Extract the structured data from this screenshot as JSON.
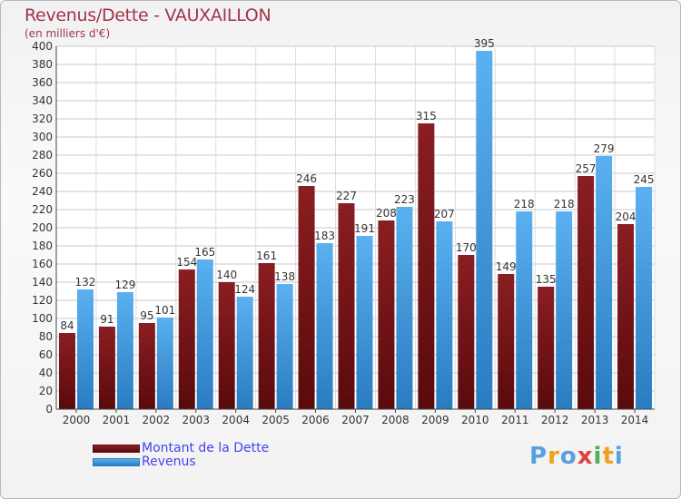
{
  "chart_data": {
    "type": "bar",
    "title": "Revenus/Dette - VAUXAILLON",
    "subtitle": "(en milliers d'€)",
    "categories": [
      "2000",
      "2001",
      "2002",
      "2003",
      "2004",
      "2005",
      "2006",
      "2007",
      "2008",
      "2009",
      "2010",
      "2011",
      "2012",
      "2013",
      "2014"
    ],
    "series": [
      {
        "name": "Montant de la Dette",
        "color": "#7a1418",
        "values": [
          84,
          91,
          95,
          154,
          140,
          161,
          246,
          227,
          208,
          315,
          170,
          149,
          135,
          257,
          204
        ]
      },
      {
        "name": "Revenus",
        "color": "#4aa3e6",
        "values": [
          132,
          129,
          101,
          165,
          124,
          138,
          183,
          191,
          223,
          207,
          395,
          218,
          218,
          279,
          245
        ]
      }
    ],
    "ylim": [
      0,
      400
    ],
    "ytick_step": 20,
    "grid": true,
    "legend_position": "bottom-left"
  },
  "legend": {
    "debt_label": "Montant de la Dette",
    "revenue_label": "Revenus"
  },
  "logo": {
    "letters": [
      "P",
      "r",
      "o",
      "x",
      "i",
      "t",
      "i"
    ],
    "colors": [
      "#5aa0e0",
      "#f0a020",
      "#5aa0e0",
      "#e04040",
      "#50b050",
      "#f0a020",
      "#5aa0e0"
    ]
  }
}
